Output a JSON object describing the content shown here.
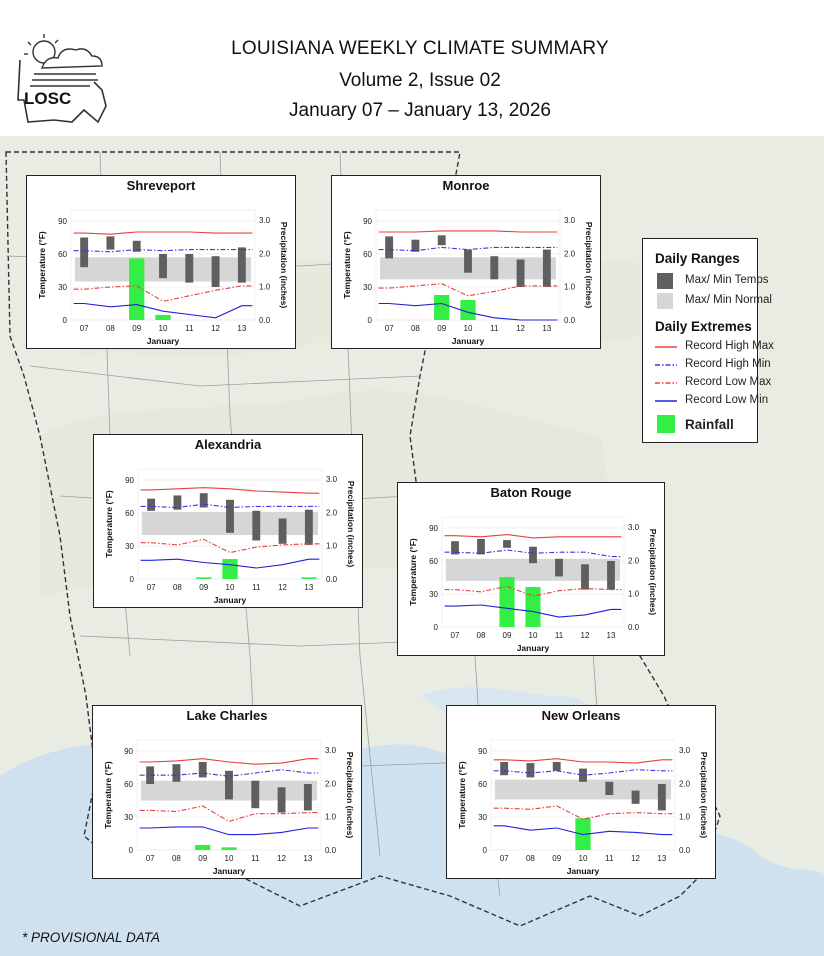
{
  "header": {
    "logo_text": "LOSC",
    "title": "LOUISIANA WEEKLY CLIMATE SUMMARY",
    "volume": "Volume 2, Issue 02",
    "dates": "January 07 – January 13, 2026"
  },
  "legend": {
    "ranges_title": "Daily Ranges",
    "maxmin_label": "Max/ Min Temps",
    "normal_label": "Max/ Min Normal",
    "extremes_title": "Daily Extremes",
    "rec_high_max_label": "Record High Max",
    "rec_high_min_label": "Record High Min",
    "rec_low_max_label": "Record Low Max",
    "rec_low_min_label": "Record Low Min",
    "rainfall_label": "Rainfall"
  },
  "colors": {
    "temp_bar": "#5f5f5f",
    "normal_band": "#d6d6d6",
    "record_high_max": "#e8413c",
    "record_high_min": "#3a3ae0",
    "record_low_max": "#e8413c",
    "record_low_min": "#2020dd",
    "rainfall": "#33ee44",
    "map_water": "#cfe0ee",
    "map_land": "#e9ece3"
  },
  "footnote": "* PROVISIONAL DATA",
  "chart_data": [
    {
      "type": "bar",
      "station": "Shreveport",
      "xlabel": "January",
      "ylabel": "Temperature (°F)",
      "y2label": "Precipitation (inches)",
      "categories": [
        "07",
        "08",
        "09",
        "10",
        "11",
        "12",
        "13"
      ],
      "ylim": [
        0,
        100
      ],
      "y2lim": [
        0,
        3.3
      ],
      "yticks": [
        0,
        30,
        60,
        90
      ],
      "y2ticks": [
        "0.0",
        "1.0",
        "2.0",
        "3.0"
      ],
      "temp_max": [
        75,
        76,
        72,
        60,
        60,
        58,
        66
      ],
      "temp_min": [
        48,
        64,
        62,
        38,
        34,
        30,
        34
      ],
      "normal_max": [
        57,
        57,
        57,
        57,
        57,
        57,
        57
      ],
      "normal_min": [
        35,
        35,
        35,
        35,
        35,
        35,
        35
      ],
      "record_high_max": [
        79,
        78,
        80,
        80,
        80,
        79,
        79
      ],
      "record_high_min": [
        63,
        62,
        64,
        63,
        64,
        64,
        64
      ],
      "record_low_max": [
        28,
        30,
        31,
        17,
        22,
        27,
        31
      ],
      "record_low_min": [
        15,
        12,
        14,
        8,
        5,
        2,
        13
      ],
      "rainfall": [
        0,
        0,
        1.85,
        0.15,
        0,
        0,
        0
      ]
    },
    {
      "type": "bar",
      "station": "Monroe",
      "xlabel": "January",
      "ylabel": "Temperature (°F)",
      "y2label": "Precipitation (inches)",
      "categories": [
        "07",
        "08",
        "09",
        "10",
        "11",
        "12",
        "13"
      ],
      "ylim": [
        0,
        100
      ],
      "y2lim": [
        0,
        3.3
      ],
      "yticks": [
        0,
        30,
        60,
        90
      ],
      "y2ticks": [
        "0.0",
        "1.0",
        "2.0",
        "3.0"
      ],
      "temp_max": [
        76,
        73,
        77,
        64,
        58,
        55,
        64
      ],
      "temp_min": [
        56,
        62,
        68,
        43,
        37,
        30,
        30
      ],
      "normal_max": [
        57,
        57,
        57,
        57,
        57,
        57,
        57
      ],
      "normal_min": [
        37,
        37,
        37,
        37,
        37,
        37,
        37
      ],
      "record_high_max": [
        80,
        80,
        81,
        81,
        81,
        80,
        80
      ],
      "record_high_min": [
        64,
        63,
        66,
        64,
        66,
        66,
        66
      ],
      "record_low_max": [
        29,
        31,
        33,
        22,
        26,
        31,
        31
      ],
      "record_low_min": [
        15,
        13,
        15,
        7,
        2,
        0,
        0
      ],
      "rainfall": [
        0,
        0,
        0.75,
        0.6,
        0,
        0,
        0
      ]
    },
    {
      "type": "bar",
      "station": "Alexandria",
      "xlabel": "January",
      "ylabel": "Temperature (°F)",
      "y2label": "Precipitation (inches)",
      "categories": [
        "07",
        "08",
        "09",
        "10",
        "11",
        "12",
        "13"
      ],
      "ylim": [
        0,
        100
      ],
      "y2lim": [
        0,
        3.3
      ],
      "yticks": [
        0,
        30,
        60,
        90
      ],
      "y2ticks": [
        "0.0",
        "1.0",
        "2.0",
        "3.0"
      ],
      "temp_max": [
        73,
        76,
        78,
        72,
        62,
        55,
        63
      ],
      "temp_min": [
        62,
        63,
        65,
        42,
        35,
        32,
        31
      ],
      "normal_max": [
        61,
        61,
        61,
        61,
        61,
        61,
        61
      ],
      "normal_min": [
        40,
        40,
        40,
        40,
        40,
        40,
        40
      ],
      "record_high_max": [
        81,
        82,
        83,
        82,
        80,
        79,
        78
      ],
      "record_high_min": [
        66,
        65,
        68,
        65,
        66,
        66,
        66
      ],
      "record_low_max": [
        33,
        31,
        36,
        24,
        29,
        31,
        32
      ],
      "record_low_min": [
        17,
        18,
        15,
        13,
        10,
        13,
        18
      ],
      "rainfall": [
        0,
        0,
        0.05,
        0.6,
        0,
        0,
        0.05
      ]
    },
    {
      "type": "bar",
      "station": "Baton Rouge",
      "xlabel": "January",
      "ylabel": "Temperature (°F)",
      "y2label": "Precipitation (inches)",
      "categories": [
        "07",
        "08",
        "09",
        "10",
        "11",
        "12",
        "13"
      ],
      "ylim": [
        0,
        100
      ],
      "y2lim": [
        0,
        3.3
      ],
      "yticks": [
        0,
        30,
        60,
        90
      ],
      "y2ticks": [
        "0.0",
        "1.0",
        "2.0",
        "3.0"
      ],
      "temp_max": [
        78,
        80,
        79,
        73,
        62,
        57,
        60
      ],
      "temp_min": [
        66,
        66,
        72,
        58,
        46,
        34,
        34
      ],
      "normal_max": [
        62,
        62,
        62,
        62,
        62,
        62,
        62
      ],
      "normal_min": [
        42,
        42,
        42,
        42,
        42,
        42,
        42
      ],
      "record_high_max": [
        83,
        82,
        84,
        81,
        82,
        82,
        82
      ],
      "record_high_min": [
        68,
        67,
        70,
        67,
        68,
        68,
        64
      ],
      "record_low_max": [
        34,
        32,
        37,
        28,
        33,
        35,
        34
      ],
      "record_low_min": [
        19,
        20,
        17,
        14,
        9,
        11,
        16
      ],
      "rainfall": [
        0,
        0,
        1.5,
        1.2,
        0,
        0,
        0
      ]
    },
    {
      "type": "bar",
      "station": "Lake Charles",
      "xlabel": "January",
      "ylabel": "Temperature (°F)",
      "y2label": "Precipitation (inches)",
      "categories": [
        "07",
        "08",
        "09",
        "10",
        "11",
        "12",
        "13"
      ],
      "ylim": [
        0,
        100
      ],
      "y2lim": [
        0,
        3.3
      ],
      "yticks": [
        0,
        30,
        60,
        90
      ],
      "y2ticks": [
        "0.0",
        "1.0",
        "2.0",
        "3.0"
      ],
      "temp_max": [
        76,
        78,
        80,
        72,
        63,
        57,
        60
      ],
      "temp_min": [
        60,
        62,
        66,
        46,
        38,
        34,
        36
      ],
      "normal_max": [
        63,
        63,
        63,
        63,
        63,
        63,
        63
      ],
      "normal_min": [
        45,
        45,
        45,
        45,
        45,
        45,
        45
      ],
      "record_high_max": [
        80,
        81,
        83,
        80,
        78,
        79,
        83
      ],
      "record_high_min": [
        68,
        68,
        70,
        67,
        70,
        73,
        70
      ],
      "record_low_max": [
        36,
        35,
        40,
        26,
        33,
        33,
        34
      ],
      "record_low_min": [
        20,
        21,
        21,
        14,
        14,
        16,
        20
      ],
      "rainfall": [
        0,
        0,
        0.15,
        0.08,
        0,
        0,
        0
      ]
    },
    {
      "type": "bar",
      "station": "New Orleans",
      "xlabel": "January",
      "ylabel": "Temperature (°F)",
      "y2label": "Precipitation (inches)",
      "categories": [
        "07",
        "08",
        "09",
        "10",
        "11",
        "12",
        "13"
      ],
      "ylim": [
        0,
        100
      ],
      "y2lim": [
        0,
        3.3
      ],
      "yticks": [
        0,
        30,
        60,
        90
      ],
      "y2ticks": [
        "0.0",
        "1.0",
        "2.0",
        "3.0"
      ],
      "temp_max": [
        80,
        79,
        80,
        74,
        62,
        54,
        60
      ],
      "temp_min": [
        68,
        66,
        72,
        62,
        50,
        42,
        36
      ],
      "normal_max": [
        64,
        64,
        64,
        64,
        64,
        64,
        64
      ],
      "normal_min": [
        46,
        46,
        46,
        46,
        46,
        46,
        46
      ],
      "record_high_max": [
        82,
        81,
        83,
        80,
        80,
        79,
        82
      ],
      "record_high_min": [
        72,
        70,
        72,
        68,
        70,
        73,
        72
      ],
      "record_low_max": [
        38,
        37,
        40,
        28,
        33,
        34,
        33
      ],
      "record_low_min": [
        22,
        18,
        20,
        14,
        17,
        16,
        14
      ],
      "rainfall": [
        0,
        0,
        0,
        0.95,
        0,
        0,
        0
      ]
    }
  ]
}
